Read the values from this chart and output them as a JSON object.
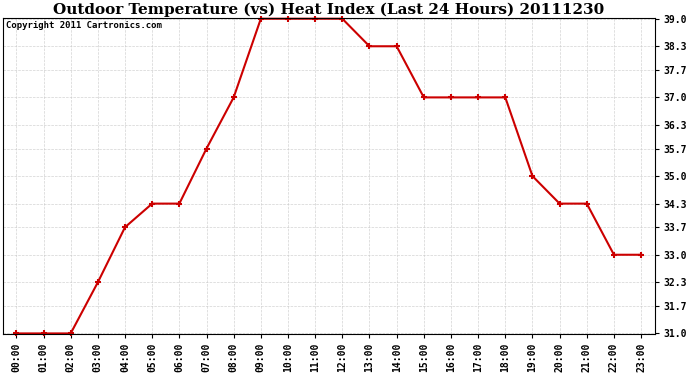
{
  "title": "Outdoor Temperature (vs) Heat Index (Last 24 Hours) 20111230",
  "copyright": "Copyright 2011 Cartronics.com",
  "x_labels": [
    "00:00",
    "01:00",
    "02:00",
    "03:00",
    "04:00",
    "05:00",
    "06:00",
    "07:00",
    "08:00",
    "09:00",
    "10:00",
    "11:00",
    "12:00",
    "13:00",
    "14:00",
    "15:00",
    "16:00",
    "17:00",
    "18:00",
    "19:00",
    "20:00",
    "21:00",
    "22:00",
    "23:00"
  ],
  "y_values": [
    31.0,
    31.0,
    31.0,
    32.3,
    33.7,
    34.3,
    34.3,
    35.7,
    37.0,
    39.0,
    39.0,
    39.0,
    39.0,
    38.3,
    38.3,
    37.0,
    37.0,
    37.0,
    37.0,
    35.0,
    34.3,
    34.3,
    33.0,
    33.0
  ],
  "line_color": "#cc0000",
  "marker": "+",
  "marker_size": 5,
  "marker_color": "#cc0000",
  "background_color": "#ffffff",
  "grid_color": "#c8c8c8",
  "ylim_min": 31.0,
  "ylim_max": 39.0,
  "yticks": [
    31.0,
    31.7,
    32.3,
    33.0,
    33.7,
    34.3,
    35.0,
    35.7,
    36.3,
    37.0,
    37.7,
    38.3,
    39.0
  ],
  "title_fontsize": 11,
  "copyright_fontsize": 6.5,
  "tick_fontsize": 7,
  "line_width": 1.5
}
